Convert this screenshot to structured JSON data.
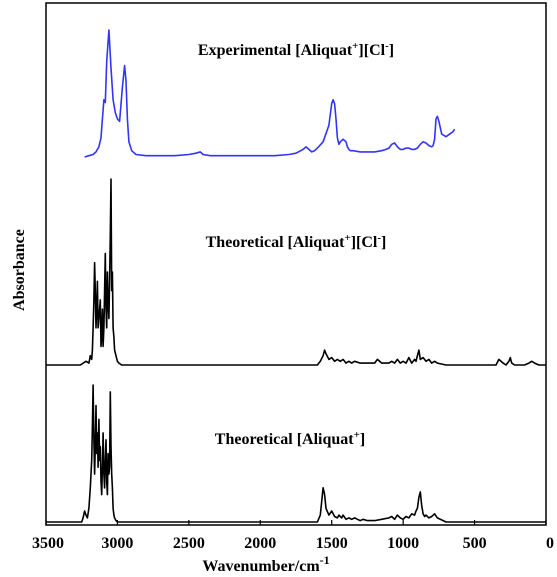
{
  "chart_data": {
    "type": "line",
    "xlabel": "Wavenumber/cm",
    "xlabel_sup": "-1",
    "ylabel": "Absorbance",
    "xlim": [
      3500,
      0
    ],
    "x_reversed": true,
    "xticks": [
      3500,
      3000,
      2500,
      2000,
      1500,
      1000,
      500,
      0
    ],
    "y_ticks_shown": false,
    "grid": false,
    "legend": "none",
    "series": [
      {
        "name": "Experimental [Aliquat+][Cl-]",
        "label_parts": [
          "Experimental  [Aliquat",
          "+",
          "][Cl",
          "-",
          "]"
        ],
        "color": "#3333ff",
        "x": [
          3230,
          3200,
          3170,
          3150,
          3130,
          3115,
          3105,
          3095,
          3085,
          3075,
          3060,
          3045,
          3030,
          3015,
          3000,
          2985,
          2965,
          2950,
          2940,
          2930,
          2920,
          2900,
          2870,
          2800,
          2700,
          2600,
          2500,
          2450,
          2420,
          2400,
          2350,
          2300,
          2200,
          2100,
          2000,
          1900,
          1800,
          1750,
          1700,
          1680,
          1660,
          1640,
          1620,
          1600,
          1560,
          1520,
          1500,
          1490,
          1480,
          1470,
          1460,
          1450,
          1440,
          1420,
          1400,
          1390,
          1380,
          1370,
          1350,
          1300,
          1250,
          1200,
          1150,
          1120,
          1100,
          1080,
          1060,
          1040,
          1020,
          1000,
          980,
          960,
          940,
          920,
          900,
          880,
          860,
          840,
          820,
          800,
          790,
          780,
          775,
          770,
          760,
          750,
          730,
          700,
          650,
          640
        ],
        "y": [
          0.0,
          0.01,
          0.02,
          0.04,
          0.08,
          0.15,
          0.3,
          0.45,
          0.43,
          0.75,
          1.0,
          0.7,
          0.45,
          0.35,
          0.3,
          0.28,
          0.55,
          0.72,
          0.6,
          0.3,
          0.12,
          0.05,
          0.02,
          0.01,
          0.01,
          0.01,
          0.02,
          0.03,
          0.04,
          0.02,
          0.01,
          0.01,
          0.01,
          0.01,
          0.01,
          0.01,
          0.02,
          0.03,
          0.06,
          0.08,
          0.06,
          0.04,
          0.05,
          0.07,
          0.12,
          0.25,
          0.42,
          0.45,
          0.42,
          0.3,
          0.15,
          0.1,
          0.12,
          0.14,
          0.12,
          0.08,
          0.06,
          0.05,
          0.05,
          0.04,
          0.04,
          0.04,
          0.05,
          0.06,
          0.07,
          0.1,
          0.11,
          0.08,
          0.06,
          0.06,
          0.07,
          0.07,
          0.06,
          0.06,
          0.07,
          0.1,
          0.12,
          0.11,
          0.09,
          0.08,
          0.09,
          0.14,
          0.22,
          0.3,
          0.32,
          0.28,
          0.18,
          0.16,
          0.2,
          0.22
        ]
      },
      {
        "name": "Theoretical [Aliquat+][Cl-]",
        "label_parts": [
          "Theoretical  [Aliquat",
          "+",
          "][Cl",
          "-",
          "]"
        ],
        "color": "#000000",
        "x": [
          3500,
          3300,
          3260,
          3220,
          3200,
          3190,
          3180,
          3175,
          3170,
          3165,
          3160,
          3155,
          3150,
          3145,
          3140,
          3135,
          3130,
          3125,
          3120,
          3115,
          3110,
          3105,
          3100,
          3095,
          3090,
          3085,
          3080,
          3075,
          3070,
          3065,
          3060,
          3055,
          3050,
          3045,
          3040,
          3035,
          3030,
          3025,
          3020,
          3010,
          3000,
          2990,
          2970,
          2950,
          2900,
          2500,
          2000,
          1600,
          1580,
          1560,
          1550,
          1540,
          1520,
          1500,
          1480,
          1460,
          1440,
          1420,
          1400,
          1380,
          1360,
          1340,
          1300,
          1250,
          1200,
          1180,
          1150,
          1100,
          1080,
          1060,
          1040,
          1020,
          1000,
          980,
          960,
          940,
          920,
          910,
          900,
          890,
          880,
          860,
          840,
          820,
          800,
          780,
          760,
          700,
          650,
          600,
          550,
          500,
          400,
          350,
          330,
          300,
          280,
          260,
          250,
          240,
          220,
          180,
          150,
          120,
          100,
          80,
          50,
          30,
          0
        ],
        "y": [
          0,
          0,
          0,
          0.02,
          0.01,
          0.05,
          0.03,
          0.08,
          0.2,
          0.35,
          0.55,
          0.4,
          0.2,
          0.3,
          0.45,
          0.2,
          0.25,
          0.3,
          0.35,
          0.1,
          0.15,
          0.3,
          0.1,
          0.2,
          0.4,
          0.6,
          0.3,
          0.2,
          0.5,
          0.35,
          0.25,
          0.45,
          0.7,
          1.0,
          0.4,
          0.5,
          0.2,
          0.15,
          0.08,
          0.05,
          0.02,
          0.01,
          0,
          0,
          0,
          0,
          0,
          0,
          0.02,
          0.05,
          0.08,
          0.06,
          0.03,
          0.04,
          0.02,
          0.03,
          0.02,
          0.03,
          0.01,
          0.02,
          0.01,
          0.02,
          0.01,
          0.01,
          0.01,
          0.03,
          0.01,
          0.01,
          0.02,
          0.01,
          0.03,
          0.01,
          0.02,
          0.01,
          0.04,
          0.01,
          0.03,
          0.02,
          0.05,
          0.08,
          0.03,
          0.04,
          0.02,
          0.03,
          0.01,
          0.02,
          0.01,
          0,
          0,
          0,
          0,
          0,
          0,
          0,
          0.03,
          0.01,
          0,
          0.02,
          0.04,
          0.01,
          0,
          0,
          0,
          0.01,
          0.02,
          0.01,
          0,
          0,
          0
        ]
      },
      {
        "name": "Theoretical [Aliquat+]",
        "label_parts": [
          "Theoretical  [Aliquat",
          "+",
          "]",
          "",
          ""
        ],
        "color": "#000000",
        "x": [
          3500,
          3300,
          3250,
          3240,
          3230,
          3220,
          3210,
          3200,
          3190,
          3180,
          3175,
          3170,
          3165,
          3160,
          3155,
          3150,
          3145,
          3140,
          3135,
          3130,
          3125,
          3120,
          3115,
          3110,
          3105,
          3100,
          3095,
          3090,
          3085,
          3080,
          3075,
          3070,
          3065,
          3060,
          3055,
          3050,
          3045,
          3040,
          3035,
          3030,
          3025,
          3020,
          3010,
          3000,
          2990,
          2950,
          2500,
          2000,
          1600,
          1580,
          1570,
          1560,
          1550,
          1540,
          1520,
          1500,
          1480,
          1460,
          1450,
          1440,
          1430,
          1420,
          1400,
          1380,
          1360,
          1340,
          1320,
          1300,
          1280,
          1250,
          1200,
          1150,
          1100,
          1080,
          1060,
          1040,
          1020,
          1000,
          980,
          960,
          940,
          920,
          910,
          900,
          890,
          880,
          870,
          860,
          850,
          840,
          820,
          800,
          780,
          760,
          700,
          600,
          0
        ],
        "y": [
          0,
          0,
          0,
          0.03,
          0.08,
          0.05,
          0.03,
          0.1,
          0.25,
          0.45,
          0.7,
          1.0,
          0.6,
          0.35,
          0.55,
          0.85,
          0.5,
          0.65,
          0.4,
          0.75,
          0.45,
          0.55,
          0.3,
          0.2,
          0.4,
          0.65,
          0.35,
          0.25,
          0.45,
          0.6,
          0.3,
          0.2,
          0.5,
          0.35,
          0.4,
          0.95,
          0.55,
          0.35,
          0.25,
          0.1,
          0.05,
          0.03,
          0.01,
          0,
          0,
          0,
          0,
          0,
          0,
          0.05,
          0.15,
          0.25,
          0.2,
          0.1,
          0.05,
          0.08,
          0.04,
          0.03,
          0.05,
          0.04,
          0.03,
          0.05,
          0.02,
          0.03,
          0.02,
          0.03,
          0.02,
          0.01,
          0.02,
          0.01,
          0.01,
          0.02,
          0.03,
          0.04,
          0.02,
          0.05,
          0.03,
          0.02,
          0.04,
          0.03,
          0.06,
          0.05,
          0.08,
          0.1,
          0.18,
          0.22,
          0.12,
          0.06,
          0.04,
          0.05,
          0.03,
          0.04,
          0.06,
          0.03,
          0,
          0,
          0
        ]
      }
    ]
  }
}
